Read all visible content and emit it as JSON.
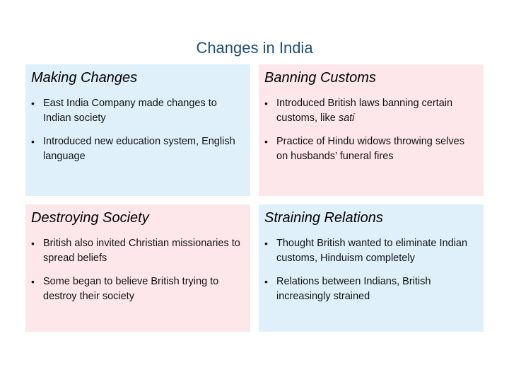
{
  "title": "Changes in India",
  "panels": [
    {
      "heading": "Making Changes",
      "bullets": [
        "East India Company made changes to Indian society",
        "Introduced new education system, English language"
      ]
    },
    {
      "heading": "Banning Customs",
      "bullets": [
        "Introduced British laws banning certain customs, like",
        "Practice of Hindu widows throwing selves on husbands’ funeral fires"
      ],
      "italic_term": "sati"
    },
    {
      "heading": "Destroying Society",
      "bullets": [
        "British also invited Christian missionaries to spread beliefs",
        "Some began to believe British trying to destroy their society"
      ]
    },
    {
      "heading": "Straining Relations",
      "bullets": [
        "Thought British wanted to eliminate Indian customs, Hinduism completely",
        "Relations between Indians, British increasingly strained"
      ]
    }
  ],
  "bullet_glyph": "•",
  "colors": {
    "title": "#1f4e79",
    "blue_panel": "#dff0fb",
    "pink_panel": "#fde7ea"
  }
}
